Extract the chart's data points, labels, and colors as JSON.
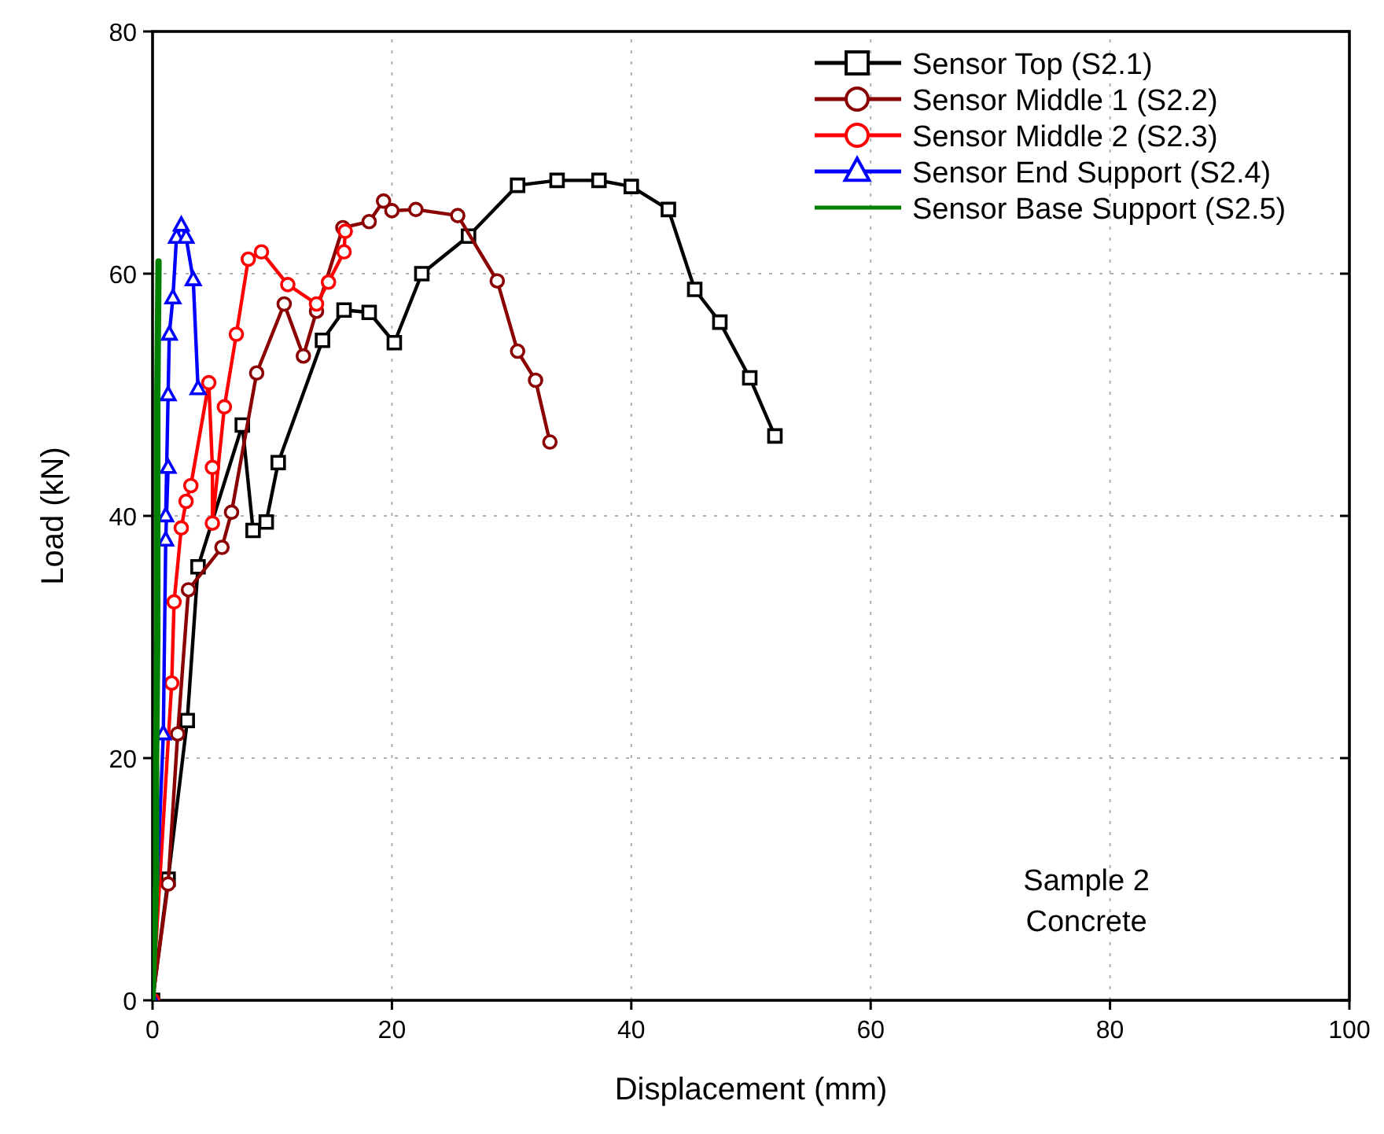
{
  "chart_data": {
    "type": "line",
    "xlabel": "Displacement (mm)",
    "ylabel": "Load (kN)",
    "xlim": [
      0,
      100
    ],
    "ylim": [
      0,
      80
    ],
    "xticks": [
      0,
      20,
      40,
      60,
      80,
      100
    ],
    "yticks": [
      0,
      20,
      40,
      60,
      80
    ],
    "grid": true,
    "legend": "top right",
    "line_style": "solid",
    "annotations": [
      "Sample 2",
      "Concrete"
    ],
    "series": [
      {
        "name": "Sensor Top (S2.1)",
        "color": "#000000",
        "marker": "square",
        "x": [
          0,
          1.3,
          2.9,
          3.8,
          7.5,
          8.4,
          9.5,
          10.5,
          14.2,
          16,
          18.1,
          20.2,
          22.5,
          26.4,
          30.5,
          33.8,
          37.3,
          40,
          43.1,
          45.3,
          47.4,
          49.9,
          52
        ],
        "values": [
          0,
          10,
          23.1,
          35.8,
          47.5,
          38.8,
          39.5,
          44.4,
          54.5,
          57,
          56.8,
          54.3,
          60,
          63.1,
          67.3,
          67.7,
          67.7,
          67.2,
          65.3,
          58.7,
          56,
          51.4,
          46.6
        ]
      },
      {
        "name": "Sensor Middle 1 (S2.2)",
        "color": "#8b0000",
        "marker": "circle",
        "x": [
          0,
          1.3,
          2.1,
          3,
          5.8,
          6.6,
          8.7,
          11,
          12.6,
          13.7,
          15.9,
          18.1,
          19.3,
          20,
          22,
          25.5,
          28.8,
          30.5,
          32,
          33.2
        ],
        "values": [
          0,
          9.6,
          22,
          33.9,
          37.4,
          40.3,
          51.8,
          57.5,
          53.2,
          56.9,
          63.8,
          64.3,
          66,
          65.2,
          65.3,
          64.8,
          59.4,
          53.6,
          51.2,
          46.1
        ]
      },
      {
        "name": "Sensor Middle 2 (S2.3)",
        "color": "#ff0000",
        "marker": "circle",
        "x": [
          0,
          1.6,
          1.8,
          2.4,
          2.8,
          3.2,
          4.7,
          5,
          5,
          6,
          7,
          8,
          9.1,
          11.3,
          13.7,
          14.7,
          16,
          16.1
        ],
        "values": [
          0,
          26.2,
          32.9,
          39,
          41.2,
          42.5,
          51,
          44,
          39.4,
          49,
          55,
          61.2,
          61.8,
          59.1,
          57.5,
          59.3,
          61.8,
          63.5
        ]
      },
      {
        "name": "Sensor End Support (S2.4)",
        "color": "#0000ff",
        "marker": "triangle",
        "x": [
          0,
          0.9,
          1.1,
          1.3,
          1.1,
          1.3,
          1.4,
          1.7,
          2,
          2.4,
          2.8,
          3.4,
          3.8
        ],
        "values": [
          0,
          22,
          38,
          44,
          40,
          50,
          55,
          58,
          63,
          64,
          63,
          59.5,
          50.5
        ]
      },
      {
        "name": "Sensor Base Support (S2.5)",
        "color": "#008000",
        "marker": "none",
        "x": [
          0,
          0.3,
          0.3,
          0.4,
          0.4,
          0.4,
          0.5
        ],
        "values": [
          0,
          10,
          20,
          30,
          40,
          50,
          61
        ]
      }
    ]
  }
}
